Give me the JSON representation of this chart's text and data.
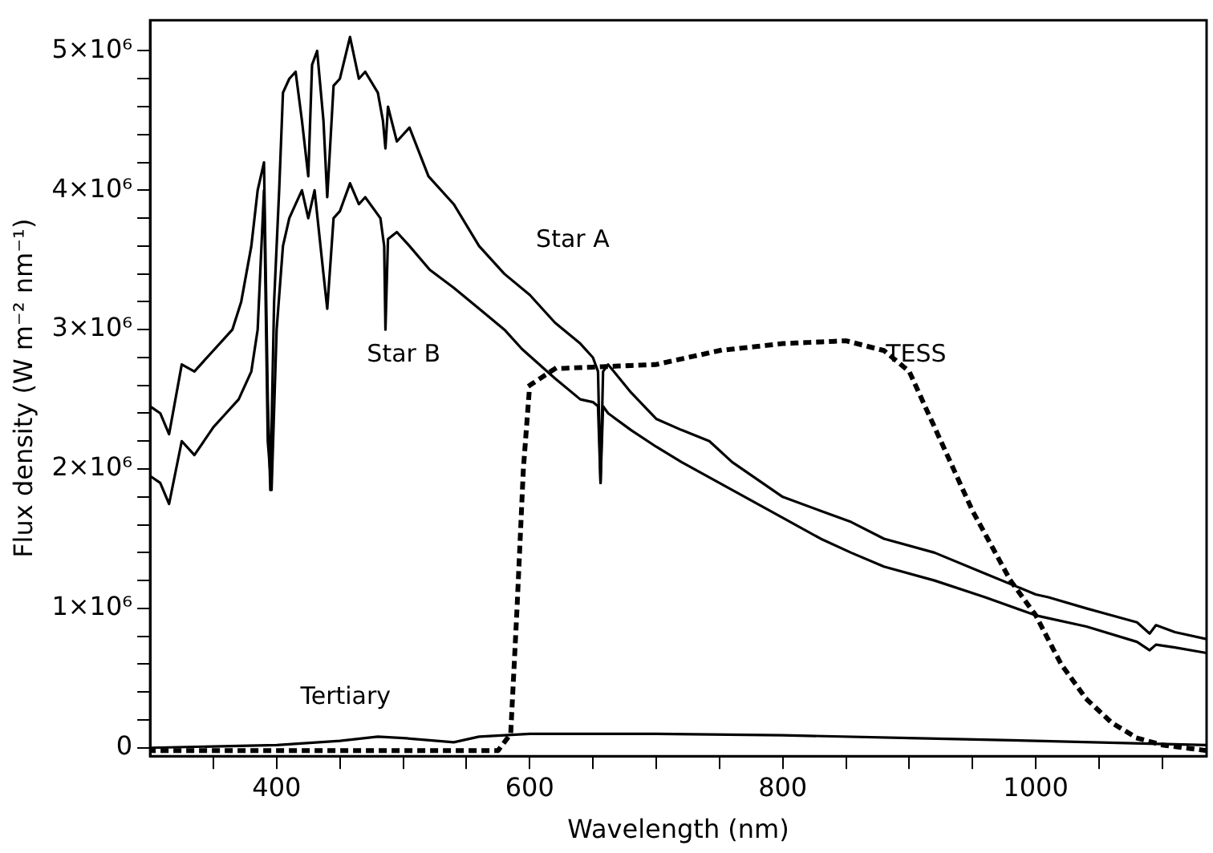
{
  "chart_data": {
    "type": "line",
    "xlabel": "Wavelength (nm)",
    "ylabel": "Flux density (W m⁻² nm⁻¹)",
    "xlim": [
      300,
      1135
    ],
    "ylim": [
      -60000,
      5220000
    ],
    "xticks": [
      {
        "value": 350,
        "label": null
      },
      400,
      {
        "value": 450,
        "label": null
      },
      {
        "value": 500,
        "label": null
      },
      {
        "value": 550,
        "label": null
      },
      600,
      {
        "value": 650,
        "label": null
      },
      {
        "value": 700,
        "label": null
      },
      {
        "value": 750,
        "label": null
      },
      800,
      {
        "value": 850,
        "label": null
      },
      {
        "value": 900,
        "label": null
      },
      {
        "value": 950,
        "label": null
      },
      1000,
      {
        "value": 1050,
        "label": null
      },
      {
        "value": 1100,
        "label": null
      }
    ],
    "yticks": [
      0,
      {
        "value": 200000,
        "label": null
      },
      {
        "value": 400000,
        "label": null
      },
      {
        "value": 600000,
        "label": null
      },
      {
        "value": 800000,
        "label": null
      },
      {
        "value": 1000000,
        "label": "1×10⁶"
      },
      {
        "value": 1200000,
        "label": null
      },
      {
        "value": 1400000,
        "label": null
      },
      {
        "value": 1600000,
        "label": null
      },
      {
        "value": 1800000,
        "label": null
      },
      {
        "value": 2000000,
        "label": "2×10⁶"
      },
      {
        "value": 2200000,
        "label": null
      },
      {
        "value": 2400000,
        "label": null
      },
      {
        "value": 2600000,
        "label": null
      },
      {
        "value": 2800000,
        "label": null
      },
      {
        "value": 3000000,
        "label": "3×10⁶"
      },
      {
        "value": 3200000,
        "label": null
      },
      {
        "value": 3400000,
        "label": null
      },
      {
        "value": 3600000,
        "label": null
      },
      {
        "value": 3800000,
        "label": null
      },
      {
        "value": 4000000,
        "label": "4×10⁶"
      },
      {
        "value": 4200000,
        "label": null
      },
      {
        "value": 4400000,
        "label": null
      },
      {
        "value": 4600000,
        "label": null
      },
      {
        "value": 4800000,
        "label": null
      },
      {
        "value": 5000000,
        "label": "5×10⁶"
      }
    ],
    "grid": false,
    "legend": false,
    "marker": "none",
    "series": [
      {
        "name": "Star A",
        "color": "#000000",
        "line_style": "solid",
        "x": [
          300,
          308,
          315,
          325,
          335,
          350,
          360,
          365,
          372,
          380,
          385,
          390,
          393,
          395,
          398,
          402,
          405,
          410,
          415,
          420,
          425,
          428,
          432,
          437,
          440,
          445,
          450,
          458,
          465,
          470,
          480,
          484,
          486,
          488,
          495,
          505,
          520,
          540,
          560,
          580,
          600,
          620,
          640,
          650,
          654,
          656,
          658,
          662,
          680,
          700,
          720,
          742,
          760,
          800,
          830,
          854,
          880,
          920,
          960,
          1000,
          1010,
          1040,
          1080,
          1090,
          1095,
          1110,
          1135
        ],
        "values": [
          2450000,
          2400000,
          2250000,
          2750000,
          2700000,
          2850000,
          2950000,
          3000000,
          3200000,
          3600000,
          4000000,
          4200000,
          2500000,
          1850000,
          3200000,
          4000000,
          4700000,
          4800000,
          4850000,
          4500000,
          4100000,
          4900000,
          5000000,
          4500000,
          3950000,
          4750000,
          4800000,
          5100000,
          4800000,
          4850000,
          4700000,
          4500000,
          4300000,
          4600000,
          4350000,
          4450000,
          4100000,
          3900000,
          3600000,
          3400000,
          3250000,
          3050000,
          2900000,
          2800000,
          2700000,
          1900000,
          2700000,
          2750000,
          2550000,
          2360000,
          2280000,
          2200000,
          2050000,
          1800000,
          1700000,
          1620000,
          1500000,
          1400000,
          1250000,
          1100000,
          1080000,
          1000000,
          900000,
          820000,
          880000,
          830000,
          780000
        ]
      },
      {
        "name": "Star B",
        "color": "#000000",
        "line_style": "solid",
        "x": [
          300,
          308,
          315,
          325,
          335,
          350,
          360,
          370,
          380,
          385,
          390,
          393,
          396,
          400,
          405,
          410,
          415,
          420,
          425,
          430,
          437,
          440,
          445,
          450,
          458,
          465,
          470,
          482,
          485,
          486,
          488,
          495,
          505,
          521,
          540,
          560,
          580,
          594,
          620,
          640,
          650,
          654,
          656,
          658,
          662,
          680,
          700,
          720,
          760,
          800,
          830,
          854,
          880,
          920,
          960,
          1000,
          1010,
          1040,
          1080,
          1090,
          1095,
          1110,
          1135
        ],
        "values": [
          1950000,
          1900000,
          1750000,
          2200000,
          2100000,
          2300000,
          2400000,
          2500000,
          2700000,
          3000000,
          4000000,
          2200000,
          1850000,
          3000000,
          3600000,
          3800000,
          3900000,
          4000000,
          3800000,
          4000000,
          3400000,
          3150000,
          3800000,
          3850000,
          4050000,
          3900000,
          3950000,
          3800000,
          3600000,
          3000000,
          3650000,
          3700000,
          3600000,
          3430000,
          3300000,
          3150000,
          3000000,
          2860000,
          2650000,
          2500000,
          2480000,
          2450000,
          1900000,
          2450000,
          2400000,
          2280000,
          2160000,
          2050000,
          1850000,
          1650000,
          1500000,
          1400000,
          1300000,
          1200000,
          1080000,
          950000,
          930000,
          870000,
          760000,
          700000,
          740000,
          720000,
          680000
        ]
      },
      {
        "name": "Tertiary",
        "color": "#000000",
        "line_style": "solid",
        "x": [
          300,
          400,
          450,
          480,
          500,
          540,
          560,
          600,
          700,
          800,
          900,
          1000,
          1135
        ],
        "values": [
          0,
          20000,
          50000,
          80000,
          70000,
          40000,
          80000,
          100000,
          100000,
          90000,
          70000,
          50000,
          20000
        ]
      },
      {
        "name": "TESS",
        "color": "#000000",
        "line_style": "dotted",
        "x": [
          300,
          575,
          585,
          590,
          595,
          600,
          620,
          700,
          750,
          800,
          850,
          880,
          900,
          920,
          950,
          980,
          1000,
          1020,
          1040,
          1060,
          1080,
          1100,
          1135
        ],
        "values": [
          -20000,
          -20000,
          100000,
          1000000,
          2000000,
          2600000,
          2720000,
          2750000,
          2850000,
          2900000,
          2920000,
          2850000,
          2700000,
          2300000,
          1700000,
          1200000,
          950000,
          600000,
          350000,
          180000,
          70000,
          20000,
          -20000
        ]
      }
    ]
  }
}
